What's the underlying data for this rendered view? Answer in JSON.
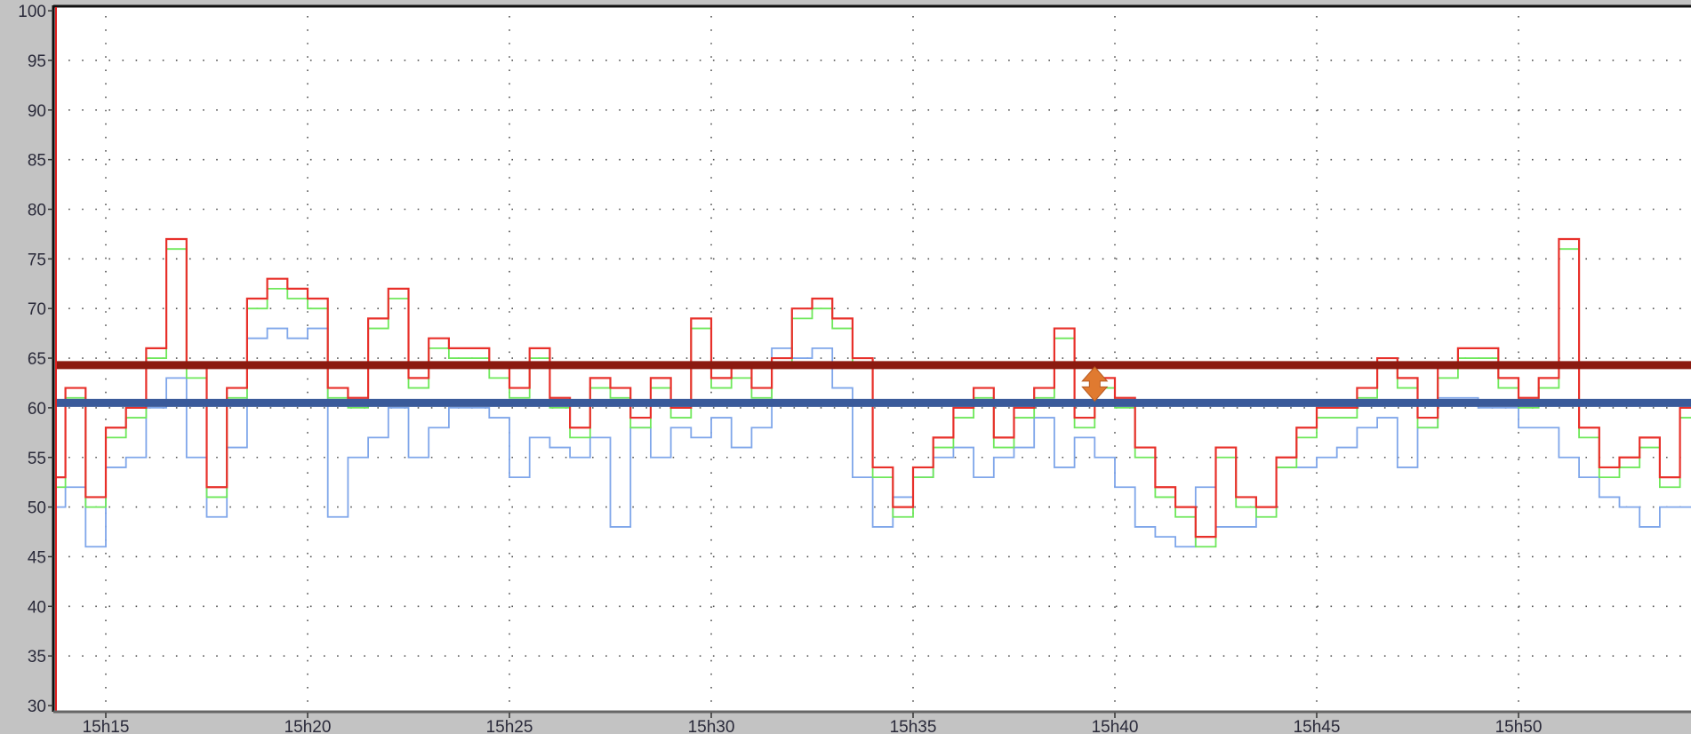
{
  "chart_data": {
    "type": "line",
    "step": true,
    "x_tick_labels": [
      "15h15",
      "15h20",
      "15h25",
      "15h30",
      "15h35",
      "15h40",
      "15h45",
      "15h50"
    ],
    "y_tick_labels": [
      "30",
      "35",
      "40",
      "45",
      "50",
      "55",
      "60",
      "65",
      "70",
      "75",
      "80",
      "85",
      "90",
      "95",
      "100"
    ],
    "ylim": [
      30,
      100
    ],
    "xlim": [
      "15:13:45",
      "15:54:20"
    ],
    "grid": "dotted",
    "x": [
      "15:13:45",
      "15:14:00",
      "15:14:30",
      "15:15:00",
      "15:15:30",
      "15:16:00",
      "15:16:30",
      "15:17:00",
      "15:17:30",
      "15:18:00",
      "15:18:30",
      "15:19:00",
      "15:19:30",
      "15:20:00",
      "15:20:30",
      "15:21:00",
      "15:21:30",
      "15:22:00",
      "15:22:30",
      "15:23:00",
      "15:23:30",
      "15:24:00",
      "15:24:30",
      "15:25:00",
      "15:25:30",
      "15:26:00",
      "15:26:30",
      "15:27:00",
      "15:27:30",
      "15:28:00",
      "15:28:30",
      "15:29:00",
      "15:29:30",
      "15:30:00",
      "15:30:30",
      "15:31:00",
      "15:31:30",
      "15:32:00",
      "15:32:30",
      "15:33:00",
      "15:33:30",
      "15:34:00",
      "15:34:30",
      "15:35:00",
      "15:35:30",
      "15:36:00",
      "15:36:30",
      "15:37:00",
      "15:37:30",
      "15:38:00",
      "15:38:30",
      "15:39:00",
      "15:39:30",
      "15:40:00",
      "15:40:30",
      "15:41:00",
      "15:41:30",
      "15:42:00",
      "15:42:30",
      "15:43:00",
      "15:43:30",
      "15:44:00",
      "15:44:30",
      "15:45:00",
      "15:45:30",
      "15:46:00",
      "15:46:30",
      "15:47:00",
      "15:47:30",
      "15:48:00",
      "15:48:30",
      "15:49:00",
      "15:49:30",
      "15:50:00",
      "15:50:30",
      "15:51:00",
      "15:51:30",
      "15:52:00",
      "15:52:30",
      "15:53:00",
      "15:53:30",
      "15:54:00"
    ],
    "series": [
      {
        "color": "#e8302a",
        "values": [
          53,
          62,
          51,
          58,
          60,
          66,
          77,
          64,
          52,
          62,
          71,
          73,
          72,
          71,
          62,
          61,
          69,
          72,
          63,
          67,
          66,
          66,
          64,
          62,
          66,
          61,
          58,
          63,
          62,
          59,
          63,
          60,
          69,
          63,
          64,
          62,
          65,
          70,
          71,
          69,
          65,
          54,
          50,
          54,
          57,
          60,
          62,
          57,
          60,
          62,
          68,
          59,
          63,
          61,
          56,
          52,
          50,
          47,
          56,
          51,
          50,
          55,
          58,
          60,
          60,
          62,
          65,
          63,
          59,
          64,
          66,
          66,
          63,
          61,
          63,
          77,
          58,
          54,
          55,
          57,
          53,
          60
        ]
      },
      {
        "color": "#6ee85a",
        "values": [
          52,
          61,
          50,
          57,
          59,
          65,
          76,
          63,
          51,
          61,
          70,
          72,
          71,
          70,
          61,
          60,
          68,
          71,
          62,
          66,
          65,
          65,
          63,
          61,
          65,
          60,
          57,
          62,
          61,
          58,
          62,
          59,
          68,
          62,
          63,
          61,
          64,
          69,
          70,
          68,
          64,
          53,
          49,
          53,
          56,
          59,
          61,
          56,
          59,
          61,
          67,
          58,
          62,
          60,
          55,
          51,
          49,
          46,
          55,
          50,
          49,
          54,
          57,
          59,
          59,
          61,
          64,
          62,
          58,
          63,
          65,
          65,
          62,
          60,
          62,
          76,
          57,
          53,
          54,
          56,
          52,
          59
        ]
      },
      {
        "color": "#7fa6ea",
        "values": [
          50,
          52,
          46,
          54,
          55,
          60,
          63,
          55,
          49,
          56,
          67,
          68,
          67,
          68,
          49,
          55,
          57,
          60,
          55,
          58,
          60,
          60,
          59,
          53,
          57,
          56,
          55,
          57,
          48,
          58,
          55,
          58,
          57,
          59,
          56,
          58,
          66,
          65,
          66,
          62,
          53,
          48,
          51,
          53,
          55,
          56,
          53,
          55,
          56,
          59,
          54,
          57,
          55,
          52,
          48,
          47,
          46,
          52,
          48,
          48,
          50,
          54,
          54,
          55,
          56,
          58,
          59,
          54,
          58,
          61,
          61,
          60,
          60,
          58,
          58,
          55,
          53,
          51,
          50,
          48,
          50,
          50
        ]
      }
    ],
    "threshold_lines": [
      {
        "value": 64.3,
        "color": "#8b1a10"
      },
      {
        "value": 60.5,
        "color": "#3a5a9a"
      }
    ],
    "marker": {
      "icon": "double-arrow-vertical-icon",
      "color": "#e07a30",
      "time": "15:39:30",
      "from": 60.5,
      "to": 64.3
    }
  }
}
